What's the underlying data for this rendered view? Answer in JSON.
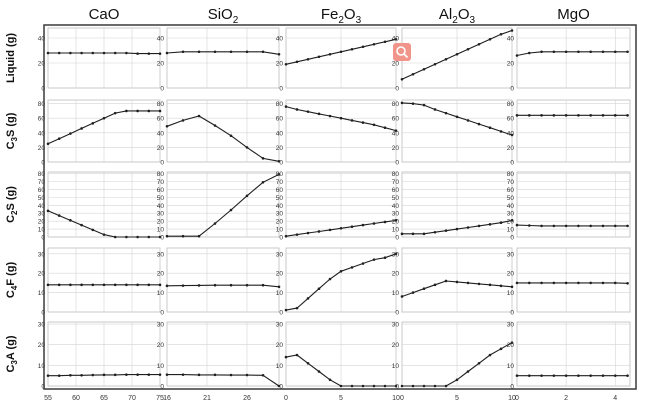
{
  "chart_data": {
    "type": "line",
    "layout": "grid 5 rows x 5 columns, small multiples",
    "columns": [
      {
        "header_main": "CaO",
        "header_sub": ""
      },
      {
        "header_main": "SiO",
        "header_sub": "2"
      },
      {
        "header_main": "Fe",
        "header_sub": "2",
        "header_main2": "O",
        "header_sub2": "3"
      },
      {
        "header_main": "Al",
        "header_sub": "2",
        "header_main2": "O",
        "header_sub2": "3"
      },
      {
        "header_main": "MgO",
        "header_sub": ""
      }
    ],
    "rows": [
      {
        "label_pre": "Liquid (g)",
        "label_sub": "",
        "label_post": "",
        "ylim": [
          0,
          48
        ],
        "yticks": [
          0,
          20,
          40
        ]
      },
      {
        "label_pre": "C",
        "label_sub": "3",
        "label_post": "S (g)",
        "ylim": [
          0,
          85
        ],
        "yticks": [
          0,
          20,
          40,
          60,
          80
        ]
      },
      {
        "label_pre": "C",
        "label_sub": "2",
        "label_post": "S (g)",
        "ylim": [
          0,
          82
        ],
        "yticks": [
          0,
          10,
          20,
          30,
          40,
          50,
          60,
          70,
          80
        ]
      },
      {
        "label_pre": "C",
        "label_sub": "4",
        "label_post": "F (g)",
        "ylim": [
          0,
          33
        ],
        "yticks": [
          0,
          10,
          20,
          30
        ]
      },
      {
        "label_pre": "C",
        "label_sub": "3",
        "label_post": "A (g)",
        "ylim": [
          0,
          31
        ],
        "yticks": [
          0,
          10,
          20,
          30
        ]
      }
    ],
    "xaxes": [
      {
        "xlim": [
          55,
          75
        ],
        "xticks": [
          55,
          60,
          65,
          70,
          75
        ]
      },
      {
        "xlim": [
          16,
          30
        ],
        "xticks": [
          16,
          21,
          26
        ]
      },
      {
        "xlim": [
          0,
          10
        ],
        "xticks": [
          0,
          5,
          10
        ]
      },
      {
        "xlim": [
          0,
          10
        ],
        "xticks": [
          0,
          5,
          10
        ]
      },
      {
        "xlim": [
          0,
          4.6
        ],
        "xticks": [
          0,
          2,
          4
        ]
      }
    ],
    "series": [
      [
        {
          "x": [
            55,
            57,
            59,
            61,
            63,
            65,
            67,
            69,
            71,
            73,
            75
          ],
          "y": [
            28,
            28,
            28,
            28,
            28,
            28,
            28,
            28,
            27.5,
            27.5,
            27.5
          ]
        },
        {
          "x": [
            55,
            57,
            59,
            61,
            63,
            65,
            67,
            69,
            71,
            73,
            75
          ],
          "y": [
            25,
            32,
            39,
            46,
            53,
            60,
            67,
            70,
            70,
            70,
            70
          ]
        },
        {
          "x": [
            55,
            57,
            59,
            61,
            63,
            65,
            67,
            69,
            71,
            73,
            75
          ],
          "y": [
            33,
            27,
            21,
            15,
            9,
            3,
            0,
            0,
            0,
            0,
            0
          ]
        },
        {
          "x": [
            55,
            57,
            59,
            61,
            63,
            65,
            67,
            69,
            71,
            73,
            75
          ],
          "y": [
            14,
            14,
            14,
            14,
            14,
            14,
            14,
            14,
            14,
            14,
            14
          ]
        },
        {
          "x": [
            55,
            57,
            59,
            61,
            63,
            65,
            67,
            69,
            71,
            73,
            75
          ],
          "y": [
            5,
            5,
            5.2,
            5.2,
            5.3,
            5.4,
            5.4,
            5.5,
            5.5,
            5.5,
            5.5
          ]
        }
      ],
      [
        {
          "x": [
            16,
            18,
            20,
            22,
            24,
            26,
            28,
            30
          ],
          "y": [
            28,
            29,
            29,
            29,
            29,
            29,
            29,
            27
          ]
        },
        {
          "x": [
            16,
            18,
            20,
            22,
            24,
            26,
            28,
            30
          ],
          "y": [
            49,
            57,
            63,
            50,
            36,
            20,
            5,
            1
          ]
        },
        {
          "x": [
            16,
            18,
            20,
            22,
            24,
            26,
            28,
            30
          ],
          "y": [
            1,
            1,
            1,
            17,
            34,
            52,
            69,
            79
          ]
        },
        {
          "x": [
            16,
            18,
            20,
            22,
            24,
            26,
            28,
            30
          ],
          "y": [
            13.5,
            13.6,
            13.7,
            13.8,
            13.8,
            13.8,
            13.8,
            13
          ]
        },
        {
          "x": [
            16,
            18,
            20,
            22,
            24,
            26,
            28,
            30
          ],
          "y": [
            5.5,
            5.5,
            5.4,
            5.4,
            5.3,
            5.3,
            5.2,
            0
          ]
        }
      ],
      [
        {
          "x": [
            0,
            1,
            2,
            3,
            4,
            5,
            6,
            7,
            8,
            9,
            10
          ],
          "y": [
            19,
            21,
            23,
            25,
            27,
            29,
            31,
            33,
            35,
            37,
            39
          ]
        },
        {
          "x": [
            0,
            1,
            2,
            3,
            4,
            5,
            6,
            7,
            8,
            9,
            10
          ],
          "y": [
            76,
            72,
            69,
            66,
            63,
            60,
            57,
            54,
            51,
            47,
            43
          ]
        },
        {
          "x": [
            0,
            1,
            2,
            3,
            4,
            5,
            6,
            7,
            8,
            9,
            10
          ],
          "y": [
            1,
            3,
            5,
            7,
            9,
            11,
            13,
            15,
            17,
            19,
            21
          ]
        },
        {
          "x": [
            0,
            1,
            2,
            3,
            4,
            5,
            6,
            7,
            8,
            9,
            10
          ],
          "y": [
            1,
            2,
            7,
            12,
            17,
            21,
            23,
            25,
            27,
            28,
            30
          ]
        },
        {
          "x": [
            0,
            1,
            2,
            3,
            4,
            5,
            6,
            7,
            8,
            9,
            10
          ],
          "y": [
            14,
            15,
            11,
            7,
            3,
            0,
            0,
            0,
            0,
            0,
            0
          ]
        }
      ],
      [
        {
          "x": [
            0,
            1,
            2,
            3,
            4,
            5,
            6,
            7,
            8,
            9,
            10
          ],
          "y": [
            7,
            11,
            15,
            19,
            23,
            27,
            31,
            35,
            39,
            43,
            46
          ]
        },
        {
          "x": [
            0,
            1,
            2,
            3,
            4,
            5,
            6,
            7,
            8,
            9,
            10
          ],
          "y": [
            81,
            80,
            78,
            72,
            67,
            62,
            57,
            52,
            47,
            42,
            37
          ]
        },
        {
          "x": [
            0,
            1,
            2,
            3,
            4,
            5,
            6,
            7,
            8,
            9,
            10
          ],
          "y": [
            4,
            4,
            4,
            6,
            8,
            10,
            12,
            14,
            16,
            18,
            21
          ]
        },
        {
          "x": [
            0,
            1,
            2,
            3,
            4,
            5,
            6,
            7,
            8,
            9,
            10
          ],
          "y": [
            8,
            10,
            12,
            14,
            16,
            15.5,
            15,
            14.5,
            14,
            13.5,
            13
          ]
        },
        {
          "x": [
            0,
            1,
            2,
            3,
            4,
            5,
            6,
            7,
            8,
            9,
            10
          ],
          "y": [
            0,
            0,
            0,
            0,
            0,
            3,
            7,
            11,
            15,
            18,
            21
          ]
        }
      ],
      [
        {
          "x": [
            0,
            0.5,
            1,
            1.5,
            2,
            2.5,
            3,
            3.5,
            4,
            4.5
          ],
          "y": [
            26,
            28,
            29,
            29,
            29,
            29,
            29,
            29,
            29,
            29
          ]
        },
        {
          "x": [
            0,
            0.5,
            1,
            1.5,
            2,
            2.5,
            3,
            3.5,
            4,
            4.5
          ],
          "y": [
            64,
            64,
            64,
            64,
            64,
            64,
            64,
            64,
            64,
            64
          ]
        },
        {
          "x": [
            0,
            0.5,
            1,
            1.5,
            2,
            2.5,
            3,
            3.5,
            4,
            4.5
          ],
          "y": [
            15,
            14.5,
            14,
            14,
            14,
            14,
            14,
            14,
            14,
            14
          ]
        },
        {
          "x": [
            0,
            0.5,
            1,
            1.5,
            2,
            2.5,
            3,
            3.5,
            4,
            4.5
          ],
          "y": [
            15,
            15,
            15,
            15,
            15,
            15,
            15,
            15,
            15,
            14.8
          ]
        },
        {
          "x": [
            0,
            0.5,
            1,
            1.5,
            2,
            2.5,
            3,
            3.5,
            4,
            4.5
          ],
          "y": [
            5,
            5,
            5,
            5,
            5,
            5,
            5,
            5,
            5,
            5
          ]
        }
      ]
    ],
    "grid": true,
    "colors": {
      "line": "#1f1f1f",
      "grid": "#d4d4d4",
      "border": "#bcbcbc",
      "outer": "#3a3a3a",
      "badge": "#f1948a"
    },
    "icons": {
      "overlay": "search-icon"
    }
  }
}
